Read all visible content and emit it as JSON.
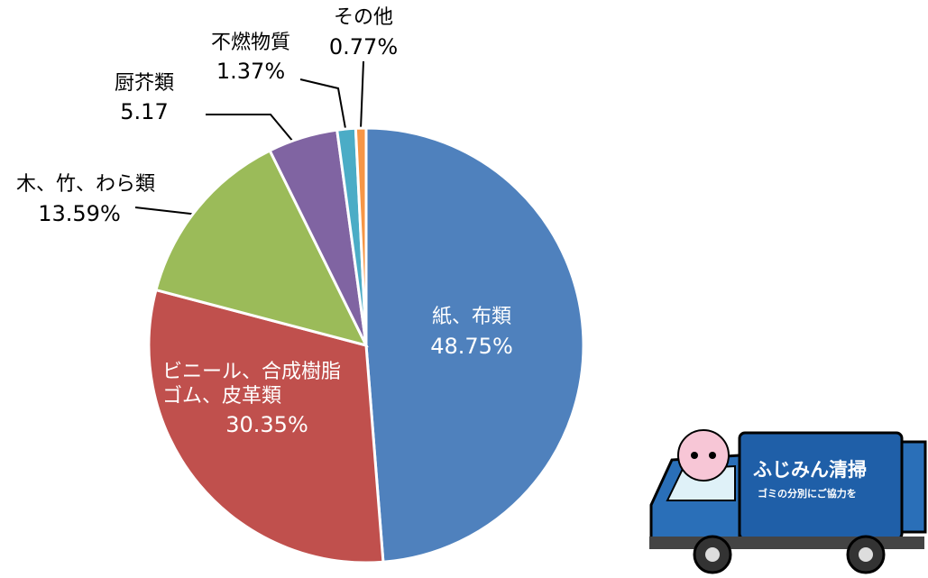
{
  "chart_data": {
    "type": "pie",
    "categories": [
      "紙、布類",
      "ビニール、合成樹脂\nゴム、皮革類",
      "木、竹、わら類",
      "厨芥類",
      "不燃物質",
      "その他"
    ],
    "values": [
      48.75,
      30.35,
      13.59,
      5.17,
      1.37,
      0.77
    ],
    "value_labels": [
      "48.75%",
      "30.35%",
      "13.59%",
      "5.17",
      "1.37%",
      "0.77%"
    ],
    "colors": [
      "#4f81bd",
      "#c0504d",
      "#9bbb59",
      "#8064a2",
      "#4bacc6",
      "#f79646"
    ]
  },
  "illustration": {
    "truck_title": "ふじみん清掃",
    "truck_subtitle": "ゴミの分別にご協力を"
  }
}
